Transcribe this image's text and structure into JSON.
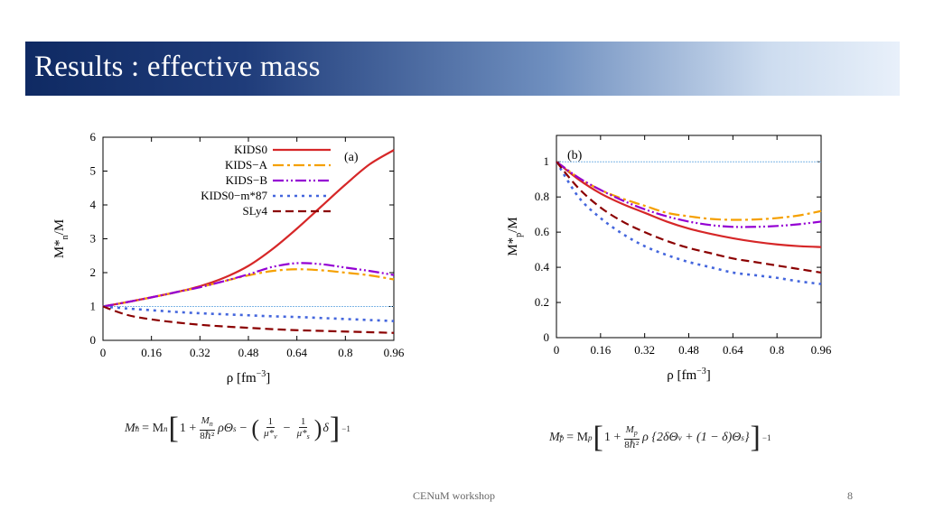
{
  "header": {
    "title": "Results : effective mass"
  },
  "footer": {
    "center": "CENuM workshop",
    "page_number": "8"
  },
  "chart_data": [
    {
      "type": "line",
      "panel_label": "(a)",
      "xlabel": "ρ [fm",
      "xlabel_sup": "−3",
      "xlabel_end": "]",
      "ylabel": "M*",
      "ylabel_sub": "n",
      "ylabel_end": "/M",
      "xlim": [
        0,
        0.96
      ],
      "ylim": [
        0,
        6
      ],
      "xticks": [
        0,
        0.16,
        0.32,
        0.48,
        0.64,
        0.8,
        0.96
      ],
      "xtick_labels": [
        "0",
        "0.16",
        "0.32",
        "0.48",
        "0.64",
        "0.8",
        "0.96"
      ],
      "yticks": [
        0,
        1,
        2,
        3,
        4,
        5,
        6
      ],
      "ytick_labels": [
        "0",
        "1",
        "2",
        "3",
        "4",
        "5",
        "6"
      ],
      "reference_line": 1,
      "legend_position": "top-left",
      "x": [
        0,
        0.08,
        0.16,
        0.24,
        0.32,
        0.4,
        0.48,
        0.56,
        0.64,
        0.72,
        0.8,
        0.88,
        0.96
      ],
      "series": [
        {
          "name": "KIDS0",
          "color": "#d62728",
          "dash": "",
          "values": [
            1.0,
            1.13,
            1.27,
            1.42,
            1.6,
            1.85,
            2.2,
            2.7,
            3.3,
            3.95,
            4.6,
            5.2,
            5.62
          ]
        },
        {
          "name": "KIDS−A",
          "color": "#f5a000",
          "dash": "12,4,3,4",
          "values": [
            1.0,
            1.13,
            1.27,
            1.42,
            1.57,
            1.75,
            1.92,
            2.05,
            2.1,
            2.07,
            2.0,
            1.92,
            1.8
          ]
        },
        {
          "name": "KIDS−B",
          "color": "#9400d3",
          "dash": "12,3,2,3,2,3",
          "values": [
            1.0,
            1.13,
            1.27,
            1.42,
            1.57,
            1.75,
            1.95,
            2.17,
            2.28,
            2.25,
            2.15,
            2.05,
            1.93
          ]
        },
        {
          "name": "KIDS0−m*87",
          "color": "#4466dd",
          "dash": "3,5",
          "values": [
            1.0,
            0.94,
            0.89,
            0.84,
            0.8,
            0.77,
            0.74,
            0.71,
            0.69,
            0.66,
            0.63,
            0.6,
            0.57
          ]
        },
        {
          "name": "SLy4",
          "color": "#8b0000",
          "dash": "9,5",
          "values": [
            1.0,
            0.75,
            0.62,
            0.53,
            0.46,
            0.41,
            0.37,
            0.33,
            0.3,
            0.28,
            0.26,
            0.24,
            0.22
          ]
        }
      ]
    },
    {
      "type": "line",
      "panel_label": "(b)",
      "xlabel": "ρ [fm",
      "xlabel_sup": "−3",
      "xlabel_end": "]",
      "ylabel": "M*",
      "ylabel_sub": "p",
      "ylabel_end": "/M",
      "xlim": [
        0,
        0.96
      ],
      "ylim": [
        0,
        1.15
      ],
      "xticks": [
        0,
        0.16,
        0.32,
        0.48,
        0.64,
        0.8,
        0.96
      ],
      "xtick_labels": [
        "0",
        "0.16",
        "0.32",
        "0.48",
        "0.64",
        "0.8",
        "0.96"
      ],
      "yticks": [
        0,
        0.2,
        0.4,
        0.6,
        0.8,
        1
      ],
      "ytick_labels": [
        "0",
        "0.2",
        "0.4",
        "0.6",
        "0.8",
        "1"
      ],
      "reference_line": 1,
      "x": [
        0,
        0.08,
        0.16,
        0.24,
        0.32,
        0.4,
        0.48,
        0.56,
        0.64,
        0.72,
        0.8,
        0.88,
        0.96
      ],
      "series": [
        {
          "name": "KIDS0",
          "color": "#d62728",
          "dash": "",
          "values": [
            1.0,
            0.9,
            0.82,
            0.76,
            0.71,
            0.66,
            0.62,
            0.59,
            0.565,
            0.545,
            0.53,
            0.52,
            0.515
          ]
        },
        {
          "name": "KIDS−A",
          "color": "#f5a000",
          "dash": "12,4,3,4",
          "values": [
            1.0,
            0.91,
            0.84,
            0.79,
            0.75,
            0.71,
            0.69,
            0.675,
            0.67,
            0.672,
            0.68,
            0.695,
            0.72
          ]
        },
        {
          "name": "KIDS−B",
          "color": "#9400d3",
          "dash": "12,3,2,3,2,3",
          "values": [
            1.0,
            0.91,
            0.84,
            0.78,
            0.73,
            0.69,
            0.66,
            0.64,
            0.63,
            0.63,
            0.635,
            0.645,
            0.66
          ]
        },
        {
          "name": "KIDS0−m*87",
          "color": "#4466dd",
          "dash": "3,5",
          "values": [
            1.0,
            0.8,
            0.68,
            0.59,
            0.52,
            0.47,
            0.43,
            0.4,
            0.37,
            0.355,
            0.34,
            0.32,
            0.305
          ]
        },
        {
          "name": "SLy4",
          "color": "#8b0000",
          "dash": "9,5",
          "values": [
            1.0,
            0.85,
            0.74,
            0.66,
            0.6,
            0.55,
            0.51,
            0.48,
            0.45,
            0.43,
            0.41,
            0.39,
            0.37
          ]
        }
      ]
    }
  ],
  "formulas": {
    "neutron": {
      "lhs": "M",
      "lhs_sub": "n",
      "lhs_sup": "*",
      "eq": " = M",
      "eq_sub": "n",
      "one_plus": "1 +",
      "frac1_num": "M",
      "frac1_num_sub": "n",
      "frac1_den": "8ℏ²",
      "rho_theta": "ρΘ",
      "rho_theta_sub": "s",
      "minus": "−",
      "inv_v_num": "1",
      "inv_v_den": "μ*",
      "inv_v_den_sub": "v",
      "inv_s_num": "1",
      "inv_s_den": "μ*",
      "inv_s_den_sub": "s",
      "delta": "δ",
      "power": "−1"
    },
    "proton": {
      "lhs": "M",
      "lhs_sub": "p",
      "lhs_sup": "*",
      "eq": " = M",
      "eq_sub": "p",
      "one_plus": "1 +",
      "frac1_num": "M",
      "frac1_num_sub": "p",
      "frac1_den": "8ℏ²",
      "body": "ρ {2δΘ",
      "body_sub1": "v",
      "body_mid": " + (1 − δ)Θ",
      "body_sub2": "s",
      "body_end": "}",
      "power": "−1"
    }
  }
}
